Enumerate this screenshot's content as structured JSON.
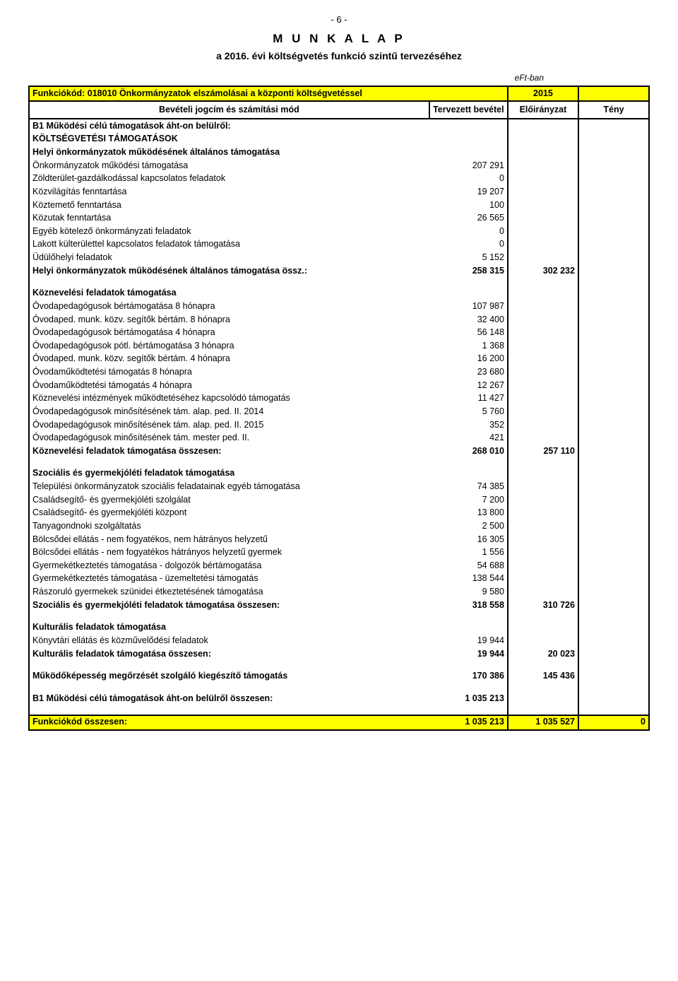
{
  "page_number": "- 6 -",
  "doc_title": "M U N K A L A P",
  "doc_subtitle": "a 2016. évi költségvetés funkció szintű tervezéséhez",
  "unit_label": "eFt-ban",
  "header_row": {
    "func_code_label": "Funkciókód: 018010 Önkormányzatok elszámolásai a központi költségvetéssel",
    "year": "2015"
  },
  "col_headers": {
    "label": "Bevételi jogcím és számítási mód",
    "planned": "Tervezett bevétel",
    "prev": "Előirányzat",
    "fact": "Tény"
  },
  "section1": {
    "title1": "B1 Működési célú támogatások áht-on belülről:",
    "title2": "KÖLTSÉGVETÉSI TÁMOGATÁSOK",
    "title3": "Helyi önkormányzatok működésének általános támogatása",
    "rows": [
      {
        "label": "Önkormányzatok működési támogatása",
        "val": "207 291"
      },
      {
        "label": "Zöldterület-gazdálkodással kapcsolatos feladatok",
        "val": "0"
      },
      {
        "label": "Közvilágítás fenntartása",
        "val": "19 207"
      },
      {
        "label": "Köztemető fenntartása",
        "val": "100"
      },
      {
        "label": "Közutak fenntartása",
        "val": "26 565"
      },
      {
        "label": "Egyéb kötelező önkormányzati feladatok",
        "val": "0"
      },
      {
        "label": "Lakott külterülettel kapcsolatos feladatok támogatása",
        "val": "0"
      },
      {
        "label": "Üdülőhelyi feladatok",
        "val": "5 152"
      }
    ],
    "sum": {
      "label": "Helyi önkormányzatok működésének általános támogatása össz.:",
      "val": "258 315",
      "prev": "302 232"
    }
  },
  "section2": {
    "title": "Köznevelési feladatok támogatása",
    "rows": [
      {
        "label": "Óvodapedagógusok bértámogatása 8 hónapra",
        "val": "107 987"
      },
      {
        "label": "Óvodaped. munk. közv. segítők bértám. 8 hónapra",
        "val": "32 400"
      },
      {
        "label": "Óvodapedagógusok bértámogatása 4 hónapra",
        "val": "56 148"
      },
      {
        "label": "Óvodapedagógusok pótl. bértámogatása 3 hónapra",
        "val": "1 368"
      },
      {
        "label": "Óvodaped. munk. közv. segítők bértám. 4 hónapra",
        "val": "16 200"
      },
      {
        "label": "Óvodaműködtetési támogatás 8 hónapra",
        "val": "23 680"
      },
      {
        "label": "Óvodaműködtetési támogatás 4 hónapra",
        "val": "12 267"
      },
      {
        "label": "Köznevelési intézmények működtetéséhez kapcsolódó támogatás",
        "val": "11 427"
      },
      {
        "label": "Óvodapedagógusok minősítésének tám. alap. ped. II. 2014",
        "val": "5 760"
      },
      {
        "label": "Óvodapedagógusok minősítésének tám. alap. ped. II. 2015",
        "val": "352"
      },
      {
        "label": "Óvodapedagógusok minősítésének tám. mester ped. II.",
        "val": "421"
      }
    ],
    "sum": {
      "label": "Köznevelési feladatok támogatása összesen:",
      "val": "268 010",
      "prev": "257 110"
    }
  },
  "section3": {
    "title": "Szociális és gyermekjóléti feladatok támogatása",
    "rows": [
      {
        "label": "Települési önkormányzatok szociális feladatainak egyéb támogatása",
        "val": "74 385"
      },
      {
        "label": "Családsegítő- és gyermekjóléti szolgálat",
        "val": "7 200"
      },
      {
        "label": "Családsegítő- és gyermekjóléti központ",
        "val": "13 800"
      },
      {
        "label": "Tanyagondnoki szolgáltatás",
        "val": "2 500"
      },
      {
        "label": "Bölcsődei ellátás - nem fogyatékos, nem hátrányos helyzetű",
        "val": "16 305"
      },
      {
        "label": "Bölcsődei ellátás - nem fogyatékos hátrányos helyzetű gyermek",
        "val": "1 556"
      },
      {
        "label": "Gyermekétkeztetés támogatása - dolgozók bértámogatása",
        "val": "54 688"
      },
      {
        "label": "Gyermekétkeztetés támogatása - üzemeltetési támogatás",
        "val": "138 544"
      },
      {
        "label": "Rászoruló gyermekek szünidei étkeztetésének támogatása",
        "val": "9 580"
      }
    ],
    "sum": {
      "label": "Szociális és gyermekjóléti feladatok támogatása összesen:",
      "val": "318 558",
      "prev": "310 726"
    }
  },
  "section4": {
    "title": "Kulturális feladatok támogatása",
    "rows": [
      {
        "label": "Könyvtári ellátás és közművelődési feladatok",
        "val": "19 944"
      }
    ],
    "sum": {
      "label": "Kulturális feladatok támogatása összesen:",
      "val": "19 944",
      "prev": "20 023"
    }
  },
  "section5": {
    "sum": {
      "label": "Működőképesség megőrzését szolgáló kiegészítő támogatás",
      "val": "170 386",
      "prev": "145 436"
    }
  },
  "grand": {
    "label": "B1 Működési célú támogatások áht-on belülről összesen:",
    "val": "1 035 213"
  },
  "footer": {
    "label": "Funkciókód összesen:",
    "val": "1 035 213",
    "prev": "1 035 527",
    "fact": "0"
  }
}
